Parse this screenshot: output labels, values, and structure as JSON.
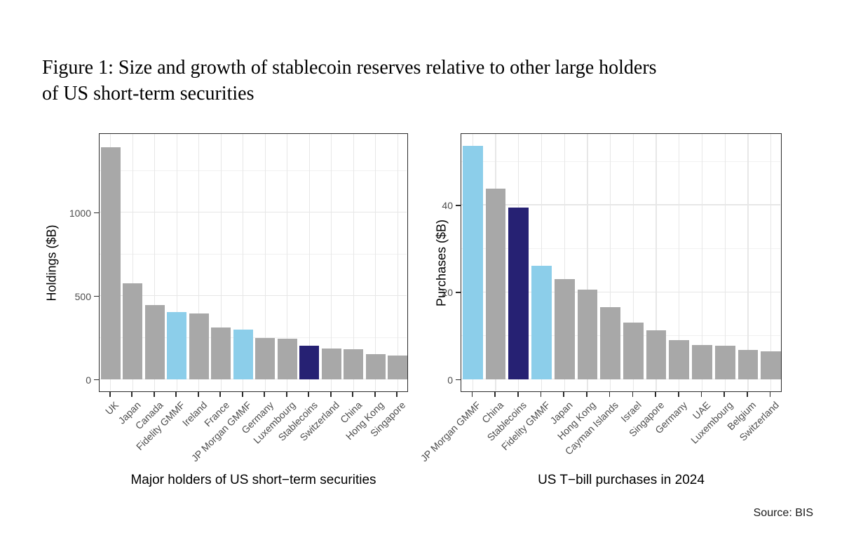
{
  "figure": {
    "title_line1": "Figure 1: Size and growth of stablecoin reserves relative to other large holders",
    "title_line2": "of US short-term securities",
    "source": "Source: BIS"
  },
  "colors": {
    "gray": "#a8a8a8",
    "light": "#8cceea",
    "dark": "#262173",
    "grid_major": "#e7e7e7",
    "grid_minor": "#f1f1f1",
    "axis_text": "#4d4d4d",
    "panel_border": "#2b2b2b"
  },
  "chart_data": [
    {
      "type": "bar",
      "title": "Major holders of US short−term securities",
      "ylabel": "Holdings ($B)",
      "ylim": [
        0,
        1477
      ],
      "yticks": [
        0,
        500,
        1000
      ],
      "yticks_minor": [
        250,
        750,
        1250
      ],
      "grid": true,
      "legend": "none",
      "categories": [
        "UK",
        "Japan",
        "Canada",
        "Fidelity GMMF",
        "Ireland",
        "France",
        "JP Morgan GMMF",
        "Germany",
        "Luxembourg",
        "Stablecoins",
        "Switzerland",
        "China",
        "Hong Kong",
        "Singapore"
      ],
      "values": [
        1390,
        575,
        443,
        403,
        392,
        310,
        297,
        247,
        243,
        200,
        184,
        177,
        148,
        142
      ],
      "bar_color_roles": [
        "gray",
        "gray",
        "gray",
        "light",
        "gray",
        "gray",
        "light",
        "gray",
        "gray",
        "dark",
        "gray",
        "gray",
        "gray",
        "gray"
      ]
    },
    {
      "type": "bar",
      "title": "US T−bill purchases in 2024",
      "ylabel": "Purchases ($B)",
      "ylim": [
        0,
        56.6
      ],
      "yticks": [
        0,
        20,
        40
      ],
      "yticks_minor": [
        10,
        30,
        50
      ],
      "grid": true,
      "legend": "none",
      "categories": [
        "JP Morgan GMMF",
        "China",
        "Stablecoins",
        "Fidelity GMMF",
        "Japan",
        "Hong Kong",
        "Cayman Islands",
        "Israel",
        "Singapore",
        "Germany",
        "UAE",
        "Luxembourg",
        "Belgium",
        "Switzerland"
      ],
      "values": [
        53.5,
        43.8,
        39.4,
        26.0,
        23.0,
        20.6,
        16.5,
        13.0,
        11.2,
        9.0,
        7.8,
        7.6,
        6.7,
        6.4
      ],
      "bar_color_roles": [
        "light",
        "gray",
        "dark",
        "light",
        "gray",
        "gray",
        "gray",
        "gray",
        "gray",
        "gray",
        "gray",
        "gray",
        "gray",
        "gray"
      ]
    }
  ]
}
